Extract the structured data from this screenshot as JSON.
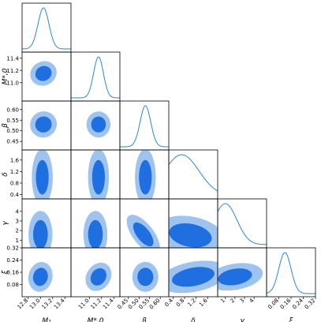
{
  "chart_data": {
    "type": "corner",
    "parameters": [
      {
        "key": "M1",
        "label": "M₁",
        "range": [
          12.7,
          13.5
        ],
        "ticks": [
          12.8,
          13.0,
          13.2,
          13.4
        ],
        "tick_labels": [
          "12.8",
          "13.0",
          "13.2",
          "13.4"
        ],
        "peak": 13.05,
        "sigma": 0.09
      },
      {
        "key": "Mstar0",
        "label": "M*,0",
        "range": [
          10.7,
          11.5
        ],
        "ticks": [
          11.0,
          11.2,
          11.4
        ],
        "tick_labels": [
          "11.0",
          "11.2",
          "11.4"
        ],
        "peak": 11.15,
        "sigma": 0.08
      },
      {
        "key": "beta",
        "label": "β",
        "range": [
          0.41,
          0.64
        ],
        "ticks": [
          0.45,
          0.5,
          0.55,
          0.6
        ],
        "tick_labels": [
          "0.45",
          "0.50",
          "0.55",
          "0.60"
        ],
        "peak": 0.53,
        "sigma": 0.025
      },
      {
        "key": "delta",
        "label": "δ",
        "range": [
          0.25,
          1.95
        ],
        "ticks": [
          0.4,
          0.8,
          1.2,
          1.6
        ],
        "tick_labels": [
          "0.4",
          "0.8",
          "1.2",
          "1.6"
        ],
        "peak": 0.7,
        "sigma": 0.6
      },
      {
        "key": "gamma",
        "label": "γ",
        "range": [
          0.2,
          5.3
        ],
        "ticks": [
          1,
          2,
          3,
          4
        ],
        "tick_labels": [
          "1",
          "2",
          "3",
          "4"
        ],
        "peak": 1.0,
        "sigma": 1.2
      },
      {
        "key": "xi",
        "label": "ξ",
        "range": [
          0.0,
          0.32
        ],
        "ticks": [
          0.08,
          0.16,
          0.24,
          0.32
        ],
        "tick_labels": [
          "0.08",
          "0.16",
          "0.24",
          "0.32"
        ],
        "peak": 0.12,
        "sigma": 0.04
      }
    ],
    "pairs": [
      {
        "x": "M1",
        "y": "Mstar0",
        "cx": 13.05,
        "cy": 11.15,
        "sx": 0.09,
        "sy": 0.08,
        "rho": 0.6
      },
      {
        "x": "M1",
        "y": "beta",
        "cx": 13.05,
        "cy": 0.53,
        "sx": 0.09,
        "sy": 0.025,
        "rho": 0.6
      },
      {
        "x": "Mstar0",
        "y": "beta",
        "cx": 11.15,
        "cy": 0.53,
        "sx": 0.08,
        "sy": 0.025,
        "rho": 0.0
      },
      {
        "x": "beta",
        "y": "delta",
        "cx": 0.53,
        "cy": 1.0,
        "sx": 0.02,
        "sy": 0.4,
        "rho": 0.0
      },
      {
        "x": "M1",
        "y": "delta",
        "cx": 13.03,
        "cy": 1.0,
        "sx": 0.07,
        "sy": 0.4,
        "rho": 0.0
      },
      {
        "x": "Mstar0",
        "y": "delta",
        "cx": 11.15,
        "cy": 1.0,
        "sx": 0.07,
        "sy": 0.4,
        "rho": 0.0
      },
      {
        "x": "M1",
        "y": "gamma",
        "cx": 13.0,
        "cy": 1.6,
        "sx": 0.08,
        "sy": 1.0,
        "rho": 0.0
      },
      {
        "x": "Mstar0",
        "y": "gamma",
        "cx": 11.1,
        "cy": 1.6,
        "sx": 0.08,
        "sy": 1.0,
        "rho": 0.0
      },
      {
        "x": "beta",
        "y": "gamma",
        "cx": 0.52,
        "cy": 1.6,
        "sx": 0.02,
        "sy": 1.0,
        "rho": 0.4
      },
      {
        "x": "delta",
        "y": "gamma",
        "cx": 1.0,
        "cy": 1.5,
        "sx": 0.5,
        "sy": 0.8,
        "rho": -0.4
      },
      {
        "x": "M1",
        "y": "xi",
        "cx": 13.0,
        "cy": 0.13,
        "sx": 0.08,
        "sy": 0.04,
        "rho": -0.2
      },
      {
        "x": "Mstar0",
        "y": "xi",
        "cx": 11.15,
        "cy": 0.13,
        "sx": 0.08,
        "sy": 0.04,
        "rho": -0.6
      },
      {
        "x": "beta",
        "y": "xi",
        "cx": 0.53,
        "cy": 0.13,
        "sx": 0.025,
        "sy": 0.04,
        "rho": 0.0
      },
      {
        "x": "delta",
        "y": "xi",
        "cx": 1.1,
        "cy": 0.13,
        "sx": 0.5,
        "sy": 0.04,
        "rho": 0.5
      },
      {
        "x": "gamma",
        "y": "xi",
        "cx": 2.0,
        "cy": 0.13,
        "sx": 1.2,
        "sy": 0.035,
        "rho": 0.4
      }
    ],
    "contour_levels": [
      "68%",
      "95%"
    ],
    "colors": {
      "inner": "#1f6fe0",
      "outer": "#9dc3ee",
      "line": "#2b86d6",
      "axis": "#000000"
    },
    "grid": false
  }
}
